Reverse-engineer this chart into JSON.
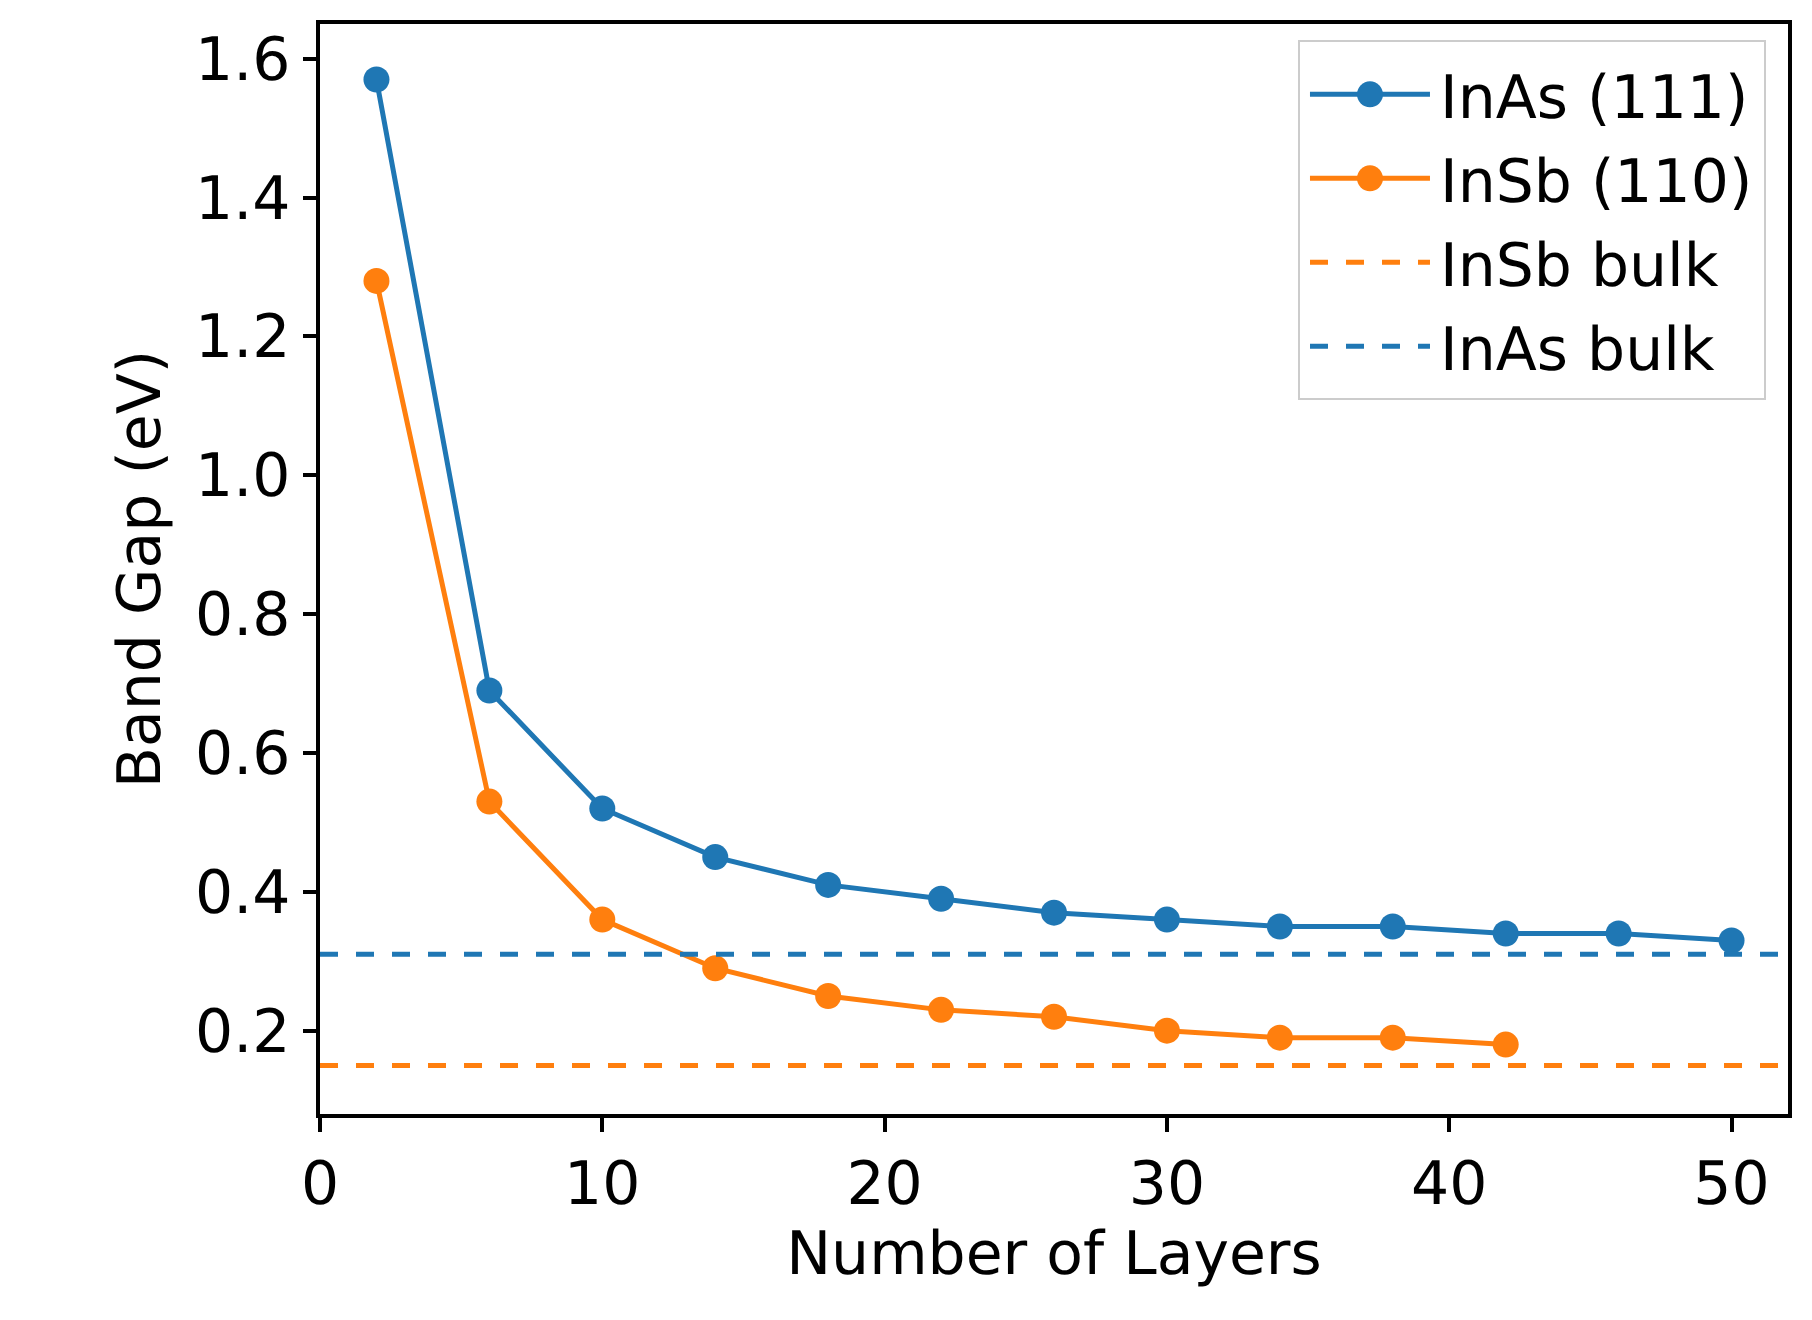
{
  "chart_data": {
    "type": "line",
    "xlabel": "Number of Layers",
    "ylabel": "Band Gap (eV)",
    "xlim": [
      0,
      52
    ],
    "ylim": [
      0.08,
      1.65
    ],
    "xticks": [
      0,
      10,
      20,
      30,
      40,
      50
    ],
    "yticks": [
      {
        "value": 0.2,
        "label": "0.2"
      },
      {
        "value": 0.4,
        "label": "0.4"
      },
      {
        "value": 0.6,
        "label": "0.6"
      },
      {
        "value": 0.8,
        "label": "0.8"
      },
      {
        "value": 1.0,
        "label": "1.0"
      },
      {
        "value": 1.2,
        "label": "1.2"
      },
      {
        "value": 1.4,
        "label": "1.4"
      },
      {
        "value": 1.6,
        "label": "1.6"
      }
    ],
    "marker": "circle",
    "line_style": "solid",
    "legend": "top right",
    "series": [
      {
        "name": "InAs (111)",
        "color": "#1f77b4",
        "x": [
          2,
          6,
          10,
          14,
          18,
          22,
          26,
          30,
          34,
          38,
          42,
          46,
          50
        ],
        "values": [
          1.57,
          0.69,
          0.52,
          0.45,
          0.41,
          0.39,
          0.37,
          0.36,
          0.35,
          0.35,
          0.34,
          0.34,
          0.33
        ]
      },
      {
        "name": "InSb (110)",
        "color": "#ff7f0e",
        "x": [
          2,
          6,
          10,
          14,
          18,
          22,
          26,
          30,
          34,
          38,
          42
        ],
        "values": [
          1.28,
          0.53,
          0.36,
          0.29,
          0.25,
          0.23,
          0.22,
          0.2,
          0.19,
          0.19,
          0.18
        ]
      }
    ],
    "ref_lines": [
      {
        "axis": "y",
        "value": 0.15,
        "label": "InSb bulk",
        "color": "#ff7f0e",
        "line_style": "dashed"
      },
      {
        "axis": "y",
        "value": 0.31,
        "label": "InAs bulk",
        "color": "#1f77b4",
        "line_style": "dashed"
      }
    ]
  }
}
